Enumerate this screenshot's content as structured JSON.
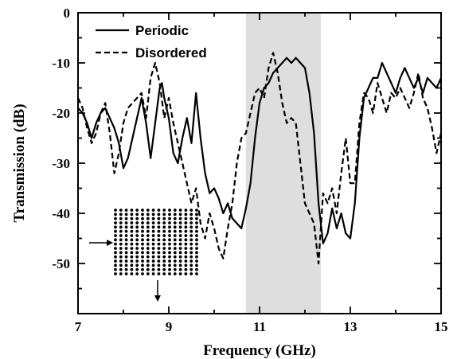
{
  "chart_data": {
    "type": "line",
    "xlabel": "Frequency (GHz)",
    "ylabel": "Transmission (dB)",
    "xlim": [
      7,
      15
    ],
    "ylim": [
      -60,
      0
    ],
    "xticks": [
      7,
      9,
      11,
      13,
      15
    ],
    "yticks": [
      0,
      -10,
      -20,
      -30,
      -40,
      -50
    ],
    "xticks_minor": [
      8,
      10,
      12,
      14
    ],
    "yticks_minor": [
      -5,
      -15,
      -25,
      -35,
      -45,
      -55
    ],
    "grid": false,
    "legend": "top-left",
    "shaded_band": {
      "x_start": 10.7,
      "x_end": 12.35,
      "color": "#dedede"
    },
    "series": [
      {
        "name": "Periodic",
        "style": "solid",
        "color": "#000000",
        "x": [
          7.0,
          7.1,
          7.2,
          7.3,
          7.4,
          7.5,
          7.6,
          7.7,
          7.8,
          7.9,
          8.0,
          8.1,
          8.2,
          8.3,
          8.4,
          8.5,
          8.6,
          8.7,
          8.8,
          8.85,
          8.9,
          9.0,
          9.1,
          9.2,
          9.3,
          9.4,
          9.5,
          9.6,
          9.7,
          9.8,
          9.9,
          10.0,
          10.1,
          10.2,
          10.3,
          10.4,
          10.5,
          10.6,
          10.7,
          10.8,
          10.9,
          11.0,
          11.1,
          11.2,
          11.3,
          11.4,
          11.5,
          11.6,
          11.7,
          11.8,
          11.9,
          12.0,
          12.1,
          12.2,
          12.3,
          12.4,
          12.5,
          12.6,
          12.7,
          12.8,
          12.9,
          13.0,
          13.1,
          13.2,
          13.3,
          13.4,
          13.5,
          13.6,
          13.7,
          13.8,
          13.9,
          14.0,
          14.1,
          14.2,
          14.3,
          14.4,
          14.5,
          14.6,
          14.7,
          14.8,
          14.9,
          15.0
        ],
        "y": [
          -19,
          -20,
          -22,
          -25,
          -22,
          -20,
          -19,
          -21,
          -23,
          -26,
          -31,
          -29,
          -25,
          -21,
          -17,
          -22,
          -29,
          -22,
          -15,
          -14,
          -17,
          -21,
          -28,
          -30,
          -25,
          -21,
          -26,
          -16,
          -25,
          -32,
          -36,
          -35,
          -37,
          -40,
          -38,
          -41,
          -42,
          -43,
          -39,
          -34,
          -25,
          -18,
          -15,
          -14,
          -12,
          -11,
          -10,
          -9,
          -10,
          -9,
          -10,
          -11,
          -16,
          -24,
          -38,
          -46,
          -44,
          -39,
          -43,
          -40,
          -44,
          -45,
          -38,
          -25,
          -17,
          -15,
          -13,
          -13,
          -10,
          -12,
          -14,
          -16,
          -13,
          -11,
          -13,
          -15,
          -13,
          -16,
          -13,
          -14,
          -15,
          -13
        ]
      },
      {
        "name": "Disordered",
        "style": "dashed",
        "color": "#000000",
        "x": [
          7.0,
          7.1,
          7.2,
          7.3,
          7.4,
          7.5,
          7.6,
          7.7,
          7.8,
          7.9,
          8.0,
          8.1,
          8.2,
          8.3,
          8.4,
          8.5,
          8.6,
          8.7,
          8.8,
          8.9,
          9.0,
          9.1,
          9.2,
          9.3,
          9.4,
          9.5,
          9.6,
          9.7,
          9.8,
          9.9,
          10.0,
          10.1,
          10.2,
          10.3,
          10.4,
          10.5,
          10.6,
          10.7,
          10.8,
          10.9,
          11.0,
          11.1,
          11.2,
          11.3,
          11.4,
          11.5,
          11.6,
          11.7,
          11.8,
          11.9,
          12.0,
          12.1,
          12.2,
          12.3,
          12.4,
          12.5,
          12.6,
          12.7,
          12.8,
          12.9,
          13.0,
          13.1,
          13.2,
          13.3,
          13.4,
          13.5,
          13.6,
          13.7,
          13.8,
          13.9,
          14.0,
          14.1,
          14.2,
          14.3,
          14.4,
          14.5,
          14.6,
          14.7,
          14.8,
          14.9,
          15.0
        ],
        "y": [
          -17,
          -19,
          -23,
          -26,
          -24,
          -20,
          -18,
          -24,
          -32,
          -28,
          -22,
          -19,
          -18,
          -17,
          -16,
          -21,
          -13,
          -10,
          -14,
          -21,
          -17,
          -22,
          -26,
          -30,
          -34,
          -38,
          -35,
          -42,
          -45,
          -40,
          -43,
          -47,
          -49,
          -43,
          -38,
          -30,
          -25,
          -24,
          -20,
          -16,
          -15,
          -17,
          -11,
          -8,
          -12,
          -18,
          -22,
          -21,
          -22,
          -30,
          -38,
          -40,
          -42,
          -50,
          -36,
          -38,
          -35,
          -40,
          -32,
          -25,
          -34,
          -34,
          -22,
          -16,
          -17,
          -20,
          -14,
          -17,
          -20,
          -16,
          -17,
          -15,
          -17,
          -19,
          -16,
          -12,
          -17,
          -19,
          -23,
          -28,
          -24
        ]
      }
    ]
  }
}
